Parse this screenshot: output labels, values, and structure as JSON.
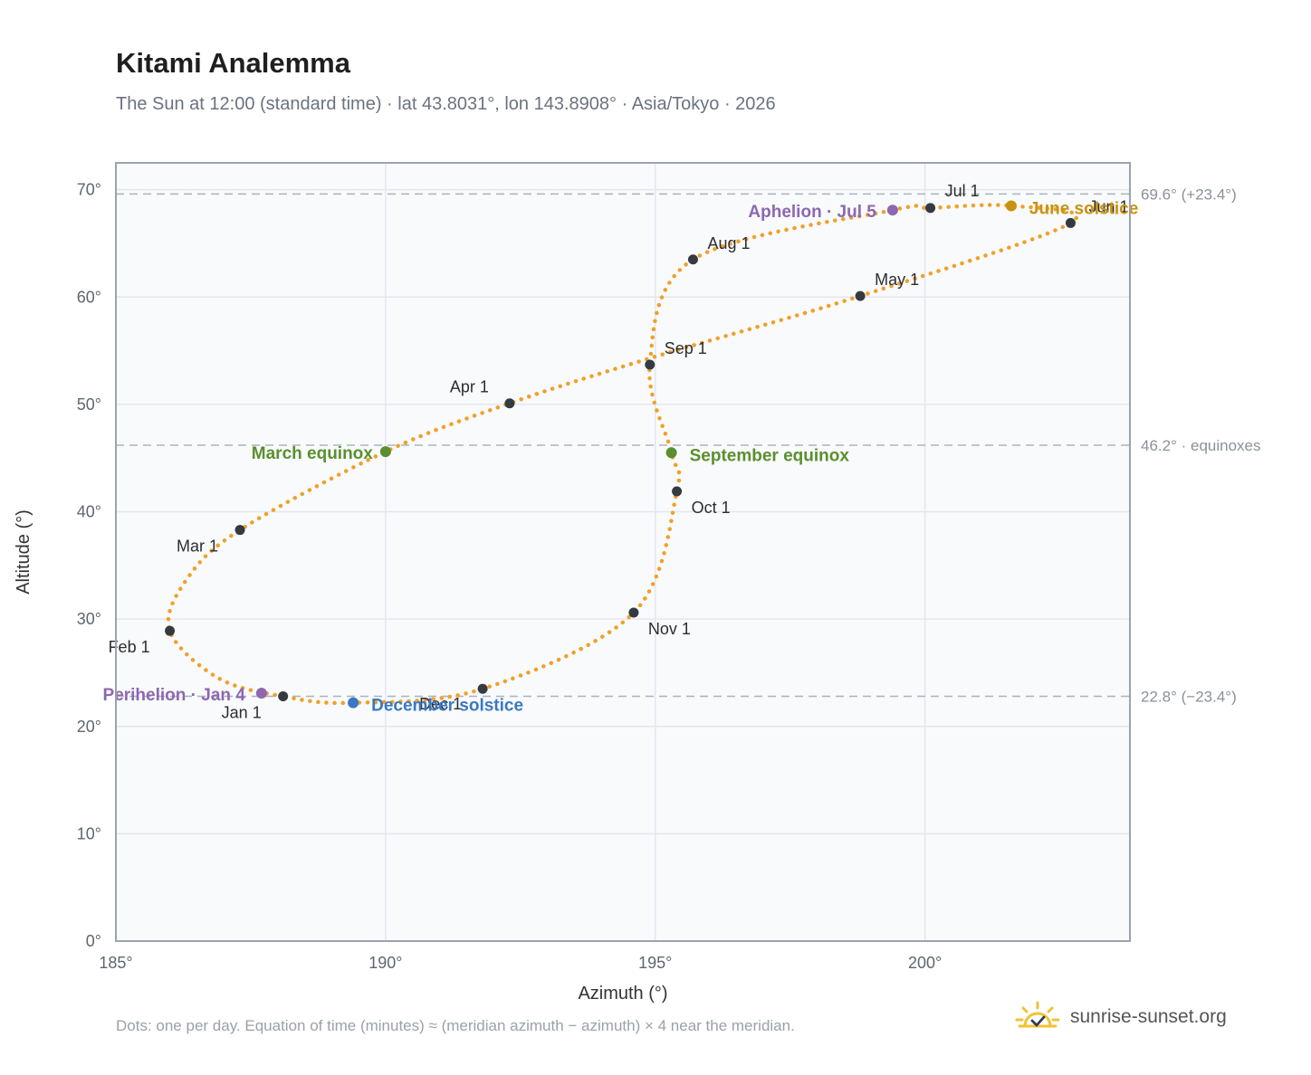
{
  "header": {
    "title": "Kitami Analemma",
    "subtitle": "The Sun at 12:00 (standard time) · lat 43.8031°, lon 143.8908° · Asia/Tokyo · 2026"
  },
  "footer": {
    "note": "Dots: one per day. Equation of time (minutes) ≈ (meridian azimuth − azimuth) × 4 near the meridian.",
    "brand": "sunrise-sunset.org"
  },
  "colors": {
    "curve": "#f0a12a",
    "month_marker": "#343a40",
    "equinox": "#5a8f2e",
    "december_solstice": "#3b78c2",
    "june_solstice": "#c9920f",
    "apsis": "#8e67b0",
    "grid": "#e3e7ee",
    "plot_bg": "#f8fafc",
    "frame": "#9aa3b0",
    "ref_line": "#aab4bf"
  },
  "chart_data": {
    "type": "scatter",
    "xlabel": "Azimuth (°)",
    "ylabel": "Altitude (°)",
    "xlim": [
      185,
      203.8
    ],
    "ylim": [
      0,
      72.5
    ],
    "xticks": [
      185,
      190,
      195,
      200
    ],
    "yticks": [
      0,
      10,
      20,
      30,
      40,
      50,
      60,
      70
    ],
    "x_tick_labels": [
      "185°",
      "190°",
      "195°",
      "200°"
    ],
    "y_tick_labels": [
      "0°",
      "10°",
      "20°",
      "30°",
      "40°",
      "50°",
      "60°",
      "70°"
    ],
    "grid": true,
    "curve_path": [
      [
        188.1,
        22.8
      ],
      [
        186.9,
        24.5
      ],
      [
        186.0,
        28.9
      ],
      [
        186.3,
        33.6
      ],
      [
        187.3,
        38.3
      ],
      [
        190.0,
        45.6
      ],
      [
        192.3,
        50.1
      ],
      [
        194.9,
        54.3
      ],
      [
        198.8,
        60.1
      ],
      [
        202.7,
        66.9
      ],
      [
        201.6,
        68.5
      ],
      [
        200.1,
        68.3
      ],
      [
        199.4,
        68.1
      ],
      [
        195.7,
        63.5
      ],
      [
        194.9,
        53.7
      ],
      [
        195.3,
        45.5
      ],
      [
        195.4,
        41.9
      ],
      [
        194.6,
        30.6
      ],
      [
        191.8,
        23.5
      ],
      [
        189.4,
        22.2
      ],
      [
        188.1,
        22.8
      ]
    ],
    "month_markers": [
      {
        "label": "Jan 1",
        "az": 188.1,
        "alt": 22.8
      },
      {
        "label": "Feb 1",
        "az": 186.0,
        "alt": 28.9
      },
      {
        "label": "Mar 1",
        "az": 187.3,
        "alt": 38.3
      },
      {
        "label": "Apr 1",
        "az": 192.3,
        "alt": 50.1
      },
      {
        "label": "May 1",
        "az": 198.8,
        "alt": 60.1
      },
      {
        "label": "Jun 1",
        "az": 202.7,
        "alt": 66.9
      },
      {
        "label": "Jul 1",
        "az": 200.1,
        "alt": 68.3
      },
      {
        "label": "Aug 1",
        "az": 195.7,
        "alt": 63.5
      },
      {
        "label": "Sep 1",
        "az": 194.9,
        "alt": 53.7
      },
      {
        "label": "Oct 1",
        "az": 195.4,
        "alt": 41.9
      },
      {
        "label": "Nov 1",
        "az": 194.6,
        "alt": 30.6
      },
      {
        "label": "Dec 1",
        "az": 191.8,
        "alt": 23.5
      }
    ],
    "events": [
      {
        "label": "March equinox",
        "az": 190.0,
        "alt": 45.6,
        "color": "#5a8f2e"
      },
      {
        "label": "September equinox",
        "az": 195.3,
        "alt": 45.5,
        "color": "#5a8f2e"
      },
      {
        "label": "June solstice",
        "az": 201.6,
        "alt": 68.5,
        "color": "#c9920f"
      },
      {
        "label": "December solstice",
        "az": 189.4,
        "alt": 22.2,
        "color": "#3b78c2"
      },
      {
        "label": "Perihelion · Jan 4",
        "az": 187.7,
        "alt": 23.1,
        "color": "#8e67b0"
      },
      {
        "label": "Aphelion · Jul 5",
        "az": 199.4,
        "alt": 68.1,
        "color": "#8e67b0"
      }
    ],
    "reference_lines": [
      {
        "alt": 69.6,
        "label": "69.6° (+23.4°)"
      },
      {
        "alt": 46.2,
        "label": "46.2° · equinoxes"
      },
      {
        "alt": 22.8,
        "label": "22.8° (−23.4°)"
      }
    ]
  }
}
